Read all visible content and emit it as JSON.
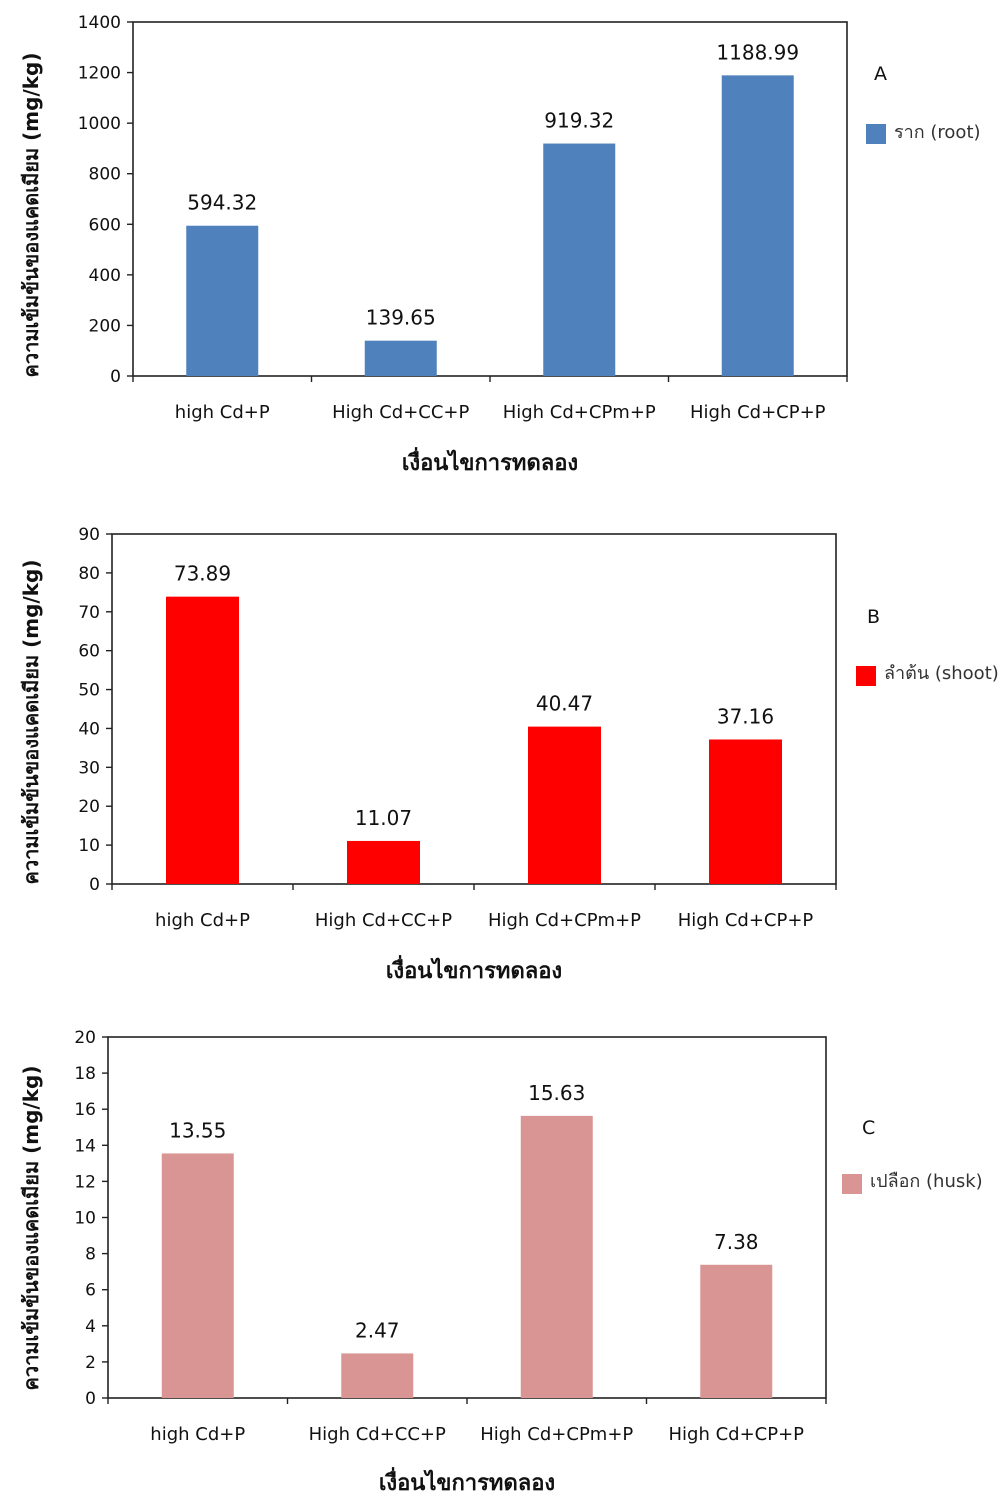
{
  "chart_data": [
    {
      "type": "bar",
      "panel_label": "A",
      "categories": [
        "high Cd+P",
        "High Cd+CC+P",
        "High Cd+CPm+P",
        "High Cd+CP+P"
      ],
      "series": [
        {
          "name": "ราก (root)",
          "values": [
            594.32,
            139.65,
            919.32,
            1188.99
          ]
        }
      ],
      "value_labels": [
        "594.32",
        "139.65",
        "919.32",
        "1188.99"
      ],
      "color": "#4f81bd",
      "ylim": [
        0,
        1400
      ],
      "yticks": [
        "0",
        "200",
        "400",
        "600",
        "800",
        "1000",
        "1200",
        "1400"
      ],
      "xlabel": "เงื่อนไขการทดลอง",
      "ylabel": "ความเข้มข้นของแคดเมียม (mg/kg)",
      "legend_position": "right"
    },
    {
      "type": "bar",
      "panel_label": "B",
      "categories": [
        "high Cd+P",
        "High Cd+CC+P",
        "High Cd+CPm+P",
        "High Cd+CP+P"
      ],
      "series": [
        {
          "name": "ลำต้น (shoot)",
          "values": [
            73.89,
            11.07,
            40.47,
            37.16
          ]
        }
      ],
      "value_labels": [
        "73.89",
        "11.07",
        "40.47",
        "37.16"
      ],
      "color": "#ff0000",
      "ylim": [
        0,
        90
      ],
      "yticks": [
        "0",
        "10",
        "20",
        "30",
        "40",
        "50",
        "60",
        "70",
        "80",
        "90"
      ],
      "xlabel": "เงื่อนไขการทดลอง",
      "ylabel": "ความเข้มข้นของแคดเมียม (mg/kg)",
      "legend_position": "right"
    },
    {
      "type": "bar",
      "panel_label": "C",
      "categories": [
        "high Cd+P",
        "High Cd+CC+P",
        "High Cd+CPm+P",
        "High Cd+CP+P"
      ],
      "series": [
        {
          "name": "เปลือก (husk)",
          "values": [
            13.55,
            2.47,
            15.63,
            7.38
          ]
        }
      ],
      "value_labels": [
        "13.55",
        "2.47",
        "15.63",
        "7.38"
      ],
      "color": "#d99594",
      "ylim": [
        0,
        20
      ],
      "yticks": [
        "0",
        "2",
        "4",
        "6",
        "8",
        "10",
        "12",
        "14",
        "16",
        "18",
        "20"
      ],
      "xlabel": "เงื่อนไขการทดลอง",
      "ylabel": "ความเข้มข้นของแคดเมียม (mg/kg)",
      "legend_position": "right"
    }
  ]
}
